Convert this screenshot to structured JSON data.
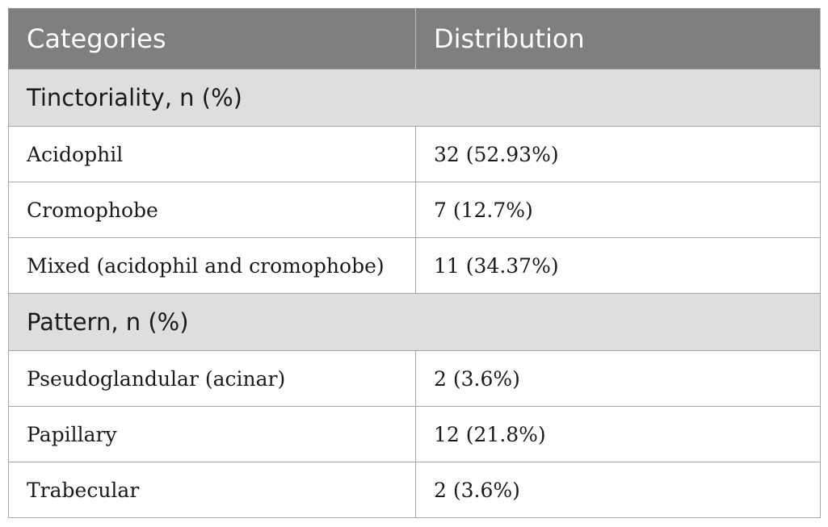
{
  "table": {
    "headers": [
      "Categories",
      "Distribution"
    ],
    "sections": [
      {
        "title": "Tinctoriality, n (%)",
        "rows": [
          {
            "category": "Acidophil",
            "distribution": "32 (52.93%)"
          },
          {
            "category": "Cromophobe",
            "distribution": "7 (12.7%)"
          },
          {
            "category": "Mixed (acidophil and cromophobe)",
            "distribution": "11 (34.37%)"
          }
        ]
      },
      {
        "title": "Pattern, n (%)",
        "rows": [
          {
            "category": "Pseudoglandular (acinar)",
            "distribution": "2 (3.6%)"
          },
          {
            "category": "Papillary",
            "distribution": "12 (21.8%)"
          },
          {
            "category": "Trabecular",
            "distribution": "2 (3.6%)"
          }
        ]
      }
    ]
  },
  "colors": {
    "header_bg": "#7f7f7f",
    "section_bg": "#dedede",
    "border": "#a6a6a6"
  }
}
